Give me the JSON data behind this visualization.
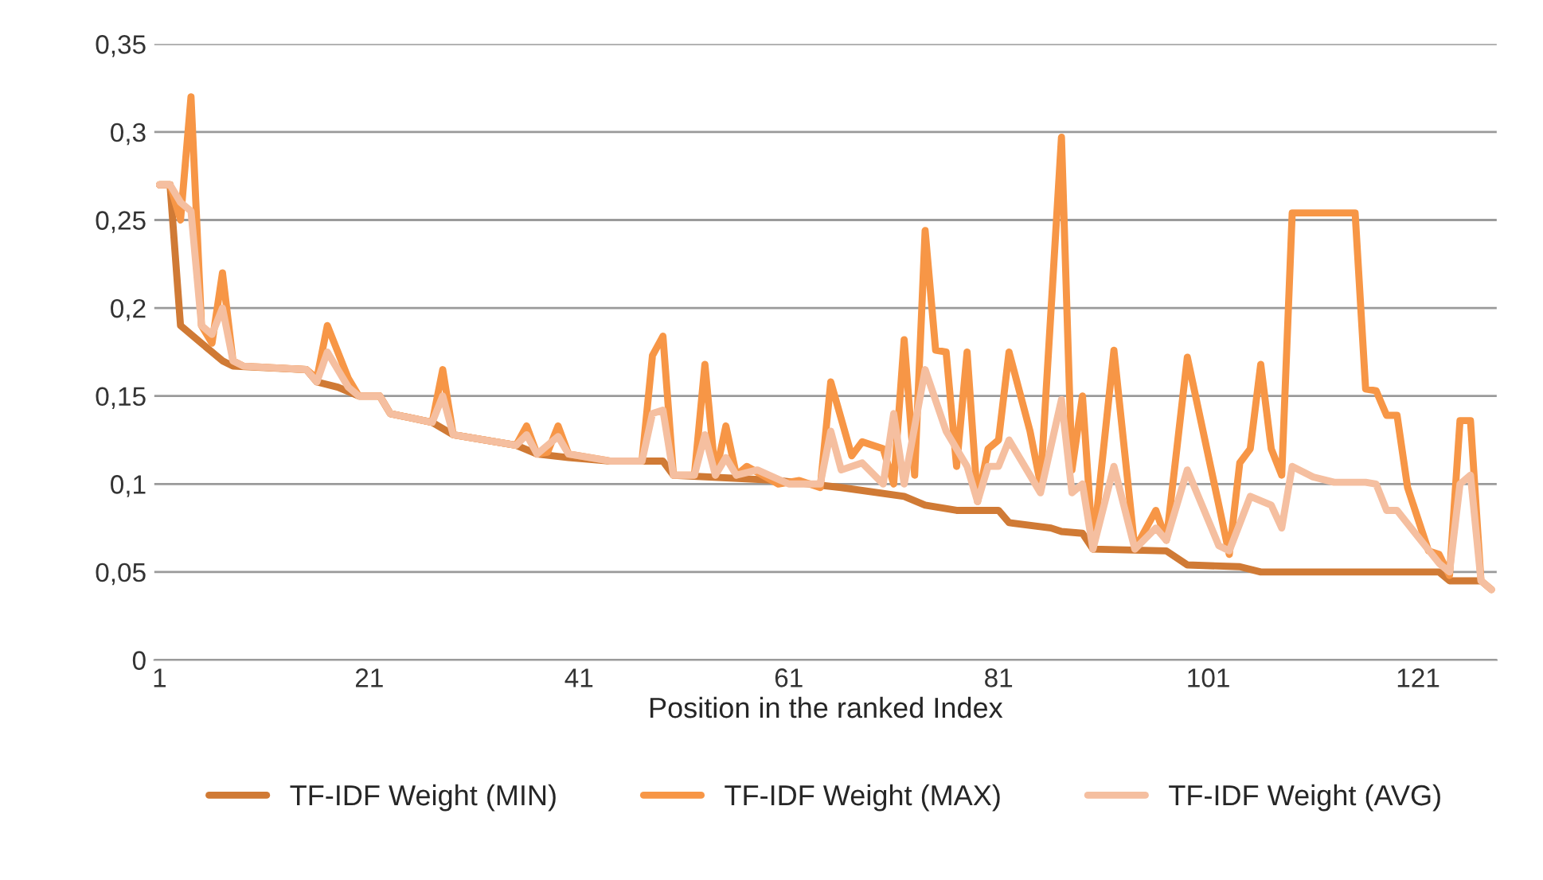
{
  "chart_data": {
    "type": "line",
    "xlabel": "Position in the ranked Index",
    "xlim": [
      0.5,
      128.5
    ],
    "xticks": [
      1,
      21,
      41,
      61,
      81,
      101,
      121
    ],
    "ylim": [
      0,
      0.35
    ],
    "yticks": [
      {
        "value": 0,
        "label": "0"
      },
      {
        "value": 0.05,
        "label": "0,05"
      },
      {
        "value": 0.1,
        "label": "0,1"
      },
      {
        "value": 0.15,
        "label": "0,15"
      },
      {
        "value": 0.2,
        "label": "0,2"
      },
      {
        "value": 0.25,
        "label": "0,25"
      },
      {
        "value": 0.3,
        "label": "0,3"
      },
      {
        "value": 0.35,
        "label": "0,35"
      }
    ],
    "grid": "y",
    "legend": "bottom",
    "marker": "none",
    "line_style": "solid",
    "series": [
      {
        "name": "TF-IDF Weight (MIN)",
        "color": "#d07a35",
        "x": [
          1,
          2,
          3,
          5,
          7,
          8,
          15,
          16,
          18,
          20,
          22,
          23,
          27,
          29,
          35,
          37,
          40,
          44,
          49,
          50,
          60,
          66,
          72,
          74,
          77,
          81,
          82,
          86,
          87,
          89,
          90,
          97,
          99,
          104,
          106,
          123,
          124,
          127
        ],
        "values": [
          0.27,
          0.27,
          0.19,
          0.18,
          0.17,
          0.167,
          0.165,
          0.158,
          0.155,
          0.15,
          0.15,
          0.14,
          0.135,
          0.128,
          0.122,
          0.117,
          0.115,
          0.113,
          0.113,
          0.105,
          0.102,
          0.098,
          0.093,
          0.088,
          0.085,
          0.085,
          0.078,
          0.075,
          0.073,
          0.072,
          0.063,
          0.062,
          0.054,
          0.053,
          0.05,
          0.05,
          0.045,
          0.045
        ]
      },
      {
        "name": "TF-IDF Weight (MAX)",
        "color": "#f79646",
        "x": [
          1,
          2,
          3,
          4,
          5,
          6,
          7,
          8,
          9,
          15,
          16,
          17,
          19,
          20,
          22,
          23,
          27,
          28,
          29,
          35,
          36,
          37,
          38,
          39,
          40,
          44,
          47,
          48,
          49,
          50,
          52,
          53,
          54,
          55,
          56,
          57,
          60,
          62,
          64,
          65,
          67,
          68,
          70,
          71,
          72,
          73,
          74,
          75,
          76,
          77,
          78,
          79,
          80,
          81,
          82,
          84,
          85,
          87,
          88,
          89,
          90,
          92,
          94,
          96,
          97,
          99,
          103,
          104,
          105,
          106,
          107,
          108,
          109,
          115,
          116,
          117,
          118,
          119,
          120,
          122,
          123,
          124,
          125,
          126,
          127,
          128
        ],
        "values": [
          0.27,
          0.27,
          0.25,
          0.32,
          0.19,
          0.18,
          0.22,
          0.17,
          0.167,
          0.165,
          0.16,
          0.19,
          0.16,
          0.15,
          0.15,
          0.14,
          0.135,
          0.165,
          0.128,
          0.122,
          0.133,
          0.117,
          0.118,
          0.133,
          0.117,
          0.113,
          0.113,
          0.173,
          0.184,
          0.105,
          0.105,
          0.168,
          0.105,
          0.133,
          0.105,
          0.11,
          0.1,
          0.102,
          0.098,
          0.158,
          0.116,
          0.124,
          0.12,
          0.1,
          0.182,
          0.105,
          0.244,
          0.176,
          0.175,
          0.11,
          0.175,
          0.09,
          0.12,
          0.125,
          0.175,
          0.13,
          0.1,
          0.297,
          0.108,
          0.15,
          0.063,
          0.176,
          0.063,
          0.085,
          0.068,
          0.172,
          0.06,
          0.112,
          0.12,
          0.168,
          0.12,
          0.105,
          0.254,
          0.254,
          0.154,
          0.153,
          0.139,
          0.139,
          0.098,
          0.062,
          0.06,
          0.048,
          0.136,
          0.136,
          0.045,
          0.04
        ]
      },
      {
        "name": "TF-IDF Weight (AVG)",
        "color": "#f5bfa0",
        "x": [
          1,
          2,
          3,
          4,
          5,
          6,
          7,
          8,
          9,
          15,
          16,
          17,
          19,
          20,
          22,
          23,
          27,
          28,
          29,
          35,
          36,
          37,
          39,
          40,
          44,
          47,
          48,
          49,
          50,
          52,
          53,
          54,
          55,
          56,
          58,
          61,
          64,
          65,
          66,
          68,
          70,
          71,
          72,
          74,
          76,
          78,
          79,
          80,
          81,
          82,
          85,
          87,
          88,
          89,
          90,
          92,
          94,
          96,
          97,
          99,
          102,
          103,
          105,
          107,
          108,
          109,
          111,
          113,
          116,
          117,
          118,
          119,
          121,
          123,
          124,
          125,
          126,
          127,
          128
        ],
        "values": [
          0.27,
          0.27,
          0.26,
          0.255,
          0.19,
          0.185,
          0.2,
          0.17,
          0.167,
          0.165,
          0.158,
          0.175,
          0.155,
          0.15,
          0.15,
          0.14,
          0.135,
          0.15,
          0.128,
          0.122,
          0.128,
          0.117,
          0.127,
          0.117,
          0.113,
          0.113,
          0.14,
          0.142,
          0.105,
          0.105,
          0.128,
          0.105,
          0.115,
          0.105,
          0.108,
          0.1,
          0.1,
          0.13,
          0.108,
          0.112,
          0.1,
          0.14,
          0.1,
          0.165,
          0.13,
          0.11,
          0.09,
          0.11,
          0.11,
          0.125,
          0.095,
          0.148,
          0.095,
          0.1,
          0.063,
          0.11,
          0.063,
          0.075,
          0.068,
          0.108,
          0.065,
          0.062,
          0.093,
          0.088,
          0.075,
          0.11,
          0.104,
          0.101,
          0.101,
          0.1,
          0.085,
          0.085,
          0.07,
          0.055,
          0.05,
          0.1,
          0.105,
          0.045,
          0.04
        ]
      }
    ]
  }
}
